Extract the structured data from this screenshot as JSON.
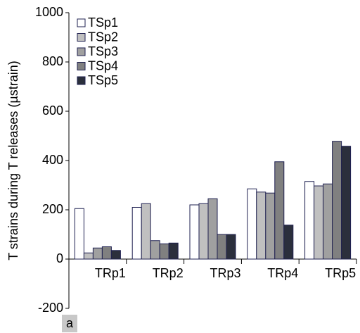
{
  "chart_data": {
    "type": "bar",
    "y_label": "T strains during T releases (µstrain)",
    "panel_label": "a",
    "categories": [
      "TRp1",
      "TRp2",
      "TRp3",
      "TRp4",
      "TRp5"
    ],
    "series": [
      {
        "name": "TSp1",
        "color": "#ffffff",
        "values": [
          205,
          210,
          220,
          285,
          315
        ]
      },
      {
        "name": "TSp2",
        "color": "#c0c0c0",
        "values": [
          25,
          225,
          225,
          272,
          297
        ]
      },
      {
        "name": "TSp3",
        "color": "#a0a0a0",
        "values": [
          45,
          75,
          245,
          268,
          305
        ]
      },
      {
        "name": "TSp4",
        "color": "#808080",
        "values": [
          50,
          62,
          100,
          395,
          478
        ]
      },
      {
        "name": "TSp5",
        "color": "#2b2f3c",
        "values": [
          35,
          65,
          100,
          138,
          458
        ]
      }
    ],
    "ylim": [
      -200,
      1000
    ],
    "yticks": [
      -200,
      0,
      200,
      400,
      600,
      800,
      1000
    ],
    "legend": "top-left"
  }
}
